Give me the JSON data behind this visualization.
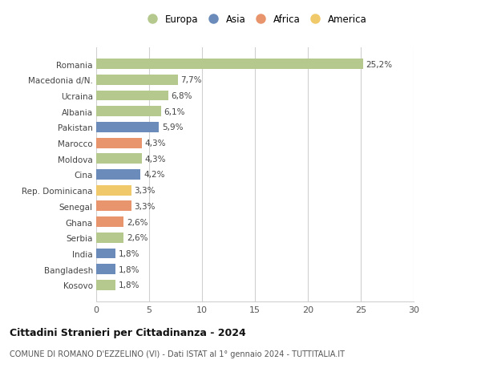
{
  "categories": [
    "Kosovo",
    "Bangladesh",
    "India",
    "Serbia",
    "Ghana",
    "Senegal",
    "Rep. Dominicana",
    "Cina",
    "Moldova",
    "Marocco",
    "Pakistan",
    "Albania",
    "Ucraina",
    "Macedonia d/N.",
    "Romania"
  ],
  "values": [
    1.8,
    1.8,
    1.8,
    2.6,
    2.6,
    3.3,
    3.3,
    4.2,
    4.3,
    4.3,
    5.9,
    6.1,
    6.8,
    7.7,
    25.2
  ],
  "labels": [
    "1,8%",
    "1,8%",
    "1,8%",
    "2,6%",
    "2,6%",
    "3,3%",
    "3,3%",
    "4,2%",
    "4,3%",
    "4,3%",
    "5,9%",
    "6,1%",
    "6,8%",
    "7,7%",
    "25,2%"
  ],
  "colors": [
    "#b5c98e",
    "#6b8cba",
    "#6b8cba",
    "#b5c98e",
    "#e8956d",
    "#e8956d",
    "#f0c96b",
    "#6b8cba",
    "#b5c98e",
    "#e8956d",
    "#6b8cba",
    "#b5c98e",
    "#b5c98e",
    "#b5c98e",
    "#b5c98e"
  ],
  "legend_labels": [
    "Europa",
    "Asia",
    "Africa",
    "America"
  ],
  "legend_colors": [
    "#b5c98e",
    "#6b8cba",
    "#e8956d",
    "#f0c96b"
  ],
  "xlim": [
    0,
    30
  ],
  "xticks": [
    0,
    5,
    10,
    15,
    20,
    25,
    30
  ],
  "title": "Cittadini Stranieri per Cittadinanza - 2024",
  "subtitle": "COMUNE DI ROMANO D'EZZELINO (VI) - Dati ISTAT al 1° gennaio 2024 - TUTTITALIA.IT",
  "bg_color": "#ffffff",
  "grid_color": "#d0d0d0",
  "bar_height": 0.65,
  "label_fontsize": 7.5,
  "ytick_fontsize": 7.5,
  "xtick_fontsize": 8,
  "legend_fontsize": 8.5,
  "title_fontsize": 9,
  "subtitle_fontsize": 7
}
